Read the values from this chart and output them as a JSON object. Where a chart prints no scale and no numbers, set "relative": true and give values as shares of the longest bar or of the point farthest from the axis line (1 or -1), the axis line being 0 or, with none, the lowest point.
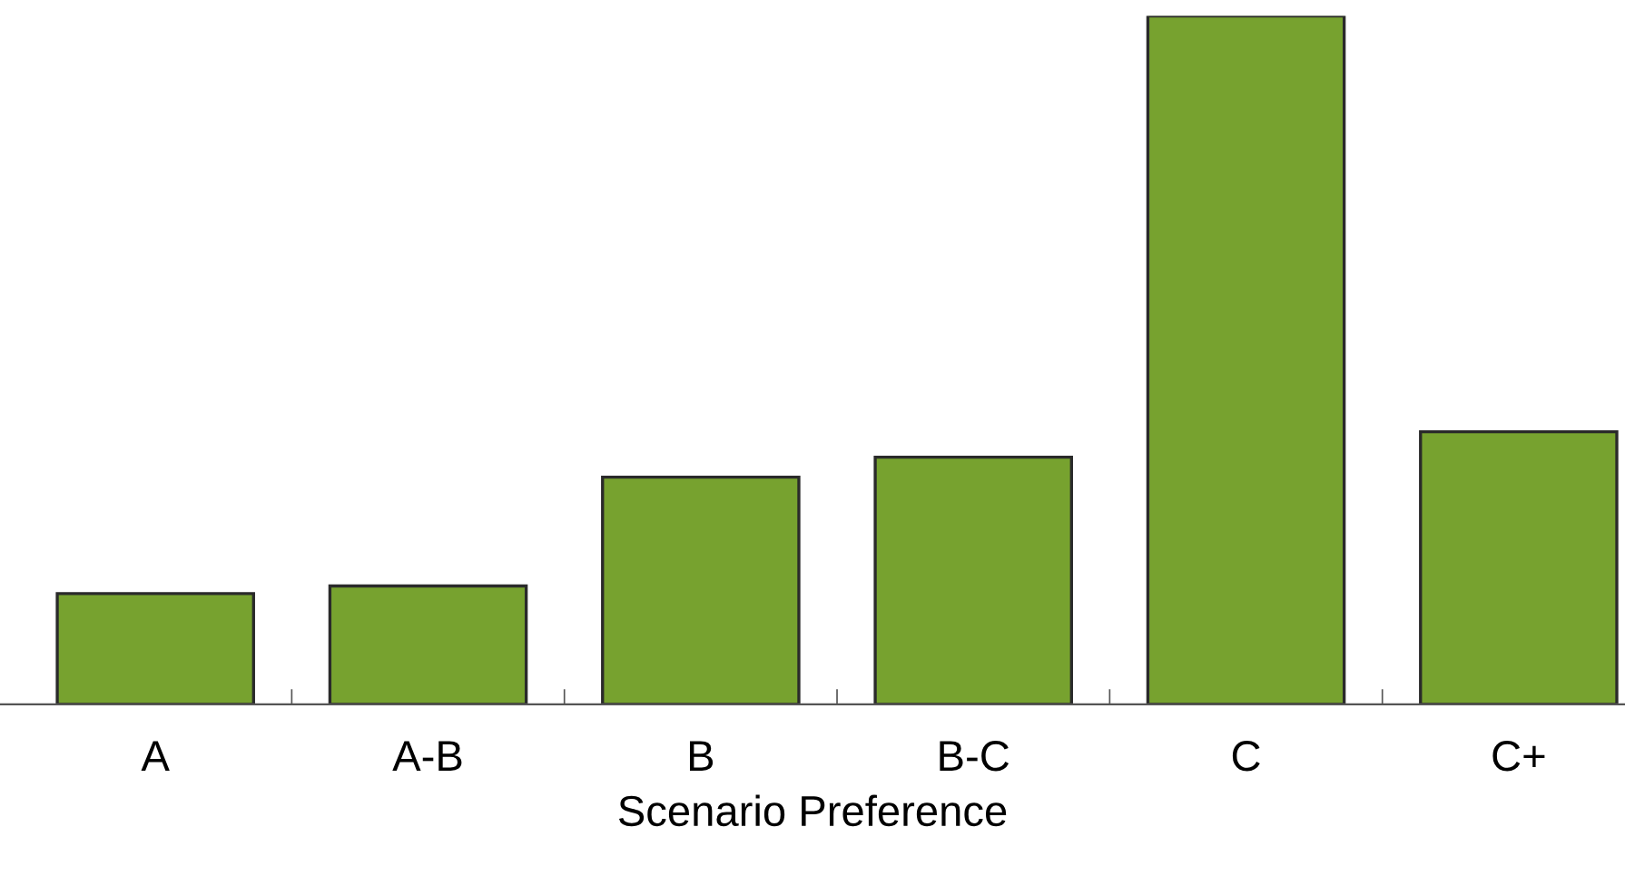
{
  "chart_data": {
    "type": "bar",
    "xlabel": "Scenario Preference",
    "categories": [
      "A",
      "A-B",
      "B",
      "B-C",
      "C",
      "C+"
    ],
    "values": [
      0.161,
      0.172,
      0.33,
      0.359,
      1,
      0.396
    ],
    "color": "#77a22f",
    "relative": true,
    "grid": false,
    "legend": false
  }
}
